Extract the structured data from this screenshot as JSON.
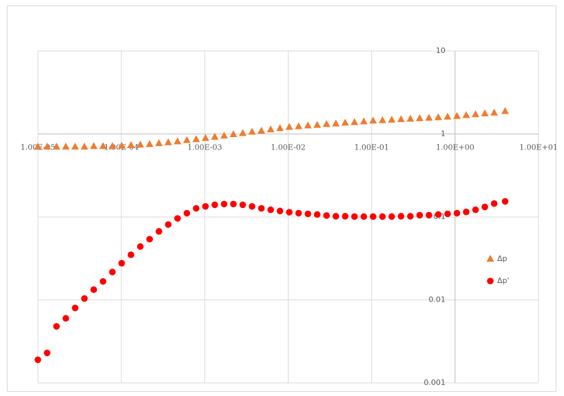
{
  "chart_data": {
    "type": "scatter",
    "x": [
      1e-05,
      1.29e-05,
      1.672e-05,
      2.162e-05,
      2.795e-05,
      3.614e-05,
      4.673e-05,
      6.042e-05,
      7.812e-05,
      0.000101,
      0.0001306,
      0.0001689,
      0.0002184,
      0.0002824,
      0.0003651,
      0.0004721,
      0.0006104,
      0.0007893,
      0.00102,
      0.001319,
      0.001706,
      0.002206,
      0.002852,
      0.003688,
      0.004769,
      0.006166,
      0.007973,
      0.01031,
      0.01333,
      0.01724,
      0.02228,
      0.02881,
      0.03726,
      0.04817,
      0.06229,
      0.08054,
      0.1041,
      0.1347,
      0.1741,
      0.2251,
      0.2911,
      0.3764,
      0.4867,
      0.6293,
      0.8137,
      1.052,
      1.36,
      1.759,
      2.274,
      2.941,
      3.98
    ],
    "series": [
      {
        "name": "Δp",
        "color": "#ed7d31",
        "marker": "triangle",
        "values": [
          0.7,
          0.7,
          0.7,
          0.7,
          0.7,
          0.7,
          0.71,
          0.71,
          0.71,
          0.72,
          0.73,
          0.74,
          0.75,
          0.77,
          0.79,
          0.81,
          0.84,
          0.86,
          0.89,
          0.92,
          0.95,
          0.99,
          1.02,
          1.06,
          1.09,
          1.13,
          1.17,
          1.21,
          1.23,
          1.26,
          1.28,
          1.31,
          1.33,
          1.36,
          1.38,
          1.41,
          1.44,
          1.46,
          1.48,
          1.5,
          1.52,
          1.54,
          1.56,
          1.58,
          1.61,
          1.64,
          1.68,
          1.72,
          1.76,
          1.8,
          1.88
        ]
      },
      {
        "name": "Δp'",
        "color": "#ff0000",
        "marker": "circle",
        "values": [
          0.0019,
          0.0023,
          0.0048,
          0.006,
          0.008,
          0.0104,
          0.0133,
          0.0167,
          0.0217,
          0.0277,
          0.035,
          0.044,
          0.054,
          0.067,
          0.081,
          0.096,
          0.111,
          0.127,
          0.134,
          0.14,
          0.143,
          0.143,
          0.14,
          0.134,
          0.127,
          0.122,
          0.118,
          0.114,
          0.111,
          0.109,
          0.107,
          0.104,
          0.102,
          0.102,
          0.101,
          0.101,
          0.101,
          0.101,
          0.101,
          0.102,
          0.102,
          0.105,
          0.105,
          0.107,
          0.109,
          0.111,
          0.115,
          0.122,
          0.132,
          0.145,
          0.154
        ]
      }
    ],
    "xscale": "log",
    "yscale": "log",
    "xlim": [
      1e-05,
      10
    ],
    "ylim": [
      0.001,
      10
    ],
    "xticks": [
      {
        "value": 1e-05,
        "label": "1.00E-05"
      },
      {
        "value": 0.0001,
        "label": "1.00E-04"
      },
      {
        "value": 0.001,
        "label": "1.00E-03"
      },
      {
        "value": 0.01,
        "label": "1.00E-02"
      },
      {
        "value": 0.1,
        "label": "1.00E-01"
      },
      {
        "value": 1,
        "label": "1.00E+00"
      },
      {
        "value": 10,
        "label": "1.00E+01"
      }
    ],
    "yticks": [
      0.001,
      0.01,
      0.1,
      1,
      10
    ],
    "x_axis_crosses_y": 1,
    "y_axis_crosses_x": 1,
    "grid": true,
    "legend": "right"
  }
}
